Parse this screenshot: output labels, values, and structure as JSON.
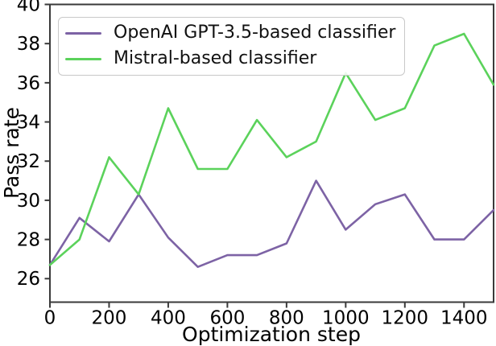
{
  "chart_data": {
    "type": "line",
    "title": "",
    "xlabel": "Optimization step",
    "ylabel": "Pass rate",
    "x": [
      0,
      100,
      200,
      300,
      400,
      500,
      600,
      700,
      800,
      900,
      1000,
      1100,
      1200,
      1300,
      1400,
      1500
    ],
    "series": [
      {
        "name": "OpenAI GPT-3.5-based classifier",
        "color": "#7d63a5",
        "values": [
          26.7,
          29.1,
          27.9,
          30.3,
          28.1,
          26.6,
          27.2,
          27.2,
          27.8,
          31.0,
          28.5,
          29.8,
          30.3,
          28.0,
          28.0,
          29.5
        ]
      },
      {
        "name": "Mistral-based classifier",
        "color": "#5bd25b",
        "values": [
          26.7,
          28.0,
          32.2,
          30.3,
          34.7,
          31.6,
          31.6,
          34.1,
          32.2,
          33.0,
          36.5,
          34.1,
          34.7,
          37.9,
          38.5,
          35.9
        ]
      }
    ],
    "xlim": [
      0,
      1500
    ],
    "ylim": [
      24.8,
      40
    ],
    "xticks": [
      0,
      200,
      400,
      600,
      800,
      1000,
      1200,
      1400
    ],
    "yticks": [
      26,
      28,
      30,
      32,
      34,
      36,
      38,
      40
    ],
    "legend_position": "upper left",
    "grid": false
  },
  "colors": {
    "spine": "#3a3a3a",
    "tick": "#3a3a3a",
    "text": "#000000",
    "legend_border": "#c8c8c8",
    "background": "#ffffff"
  }
}
